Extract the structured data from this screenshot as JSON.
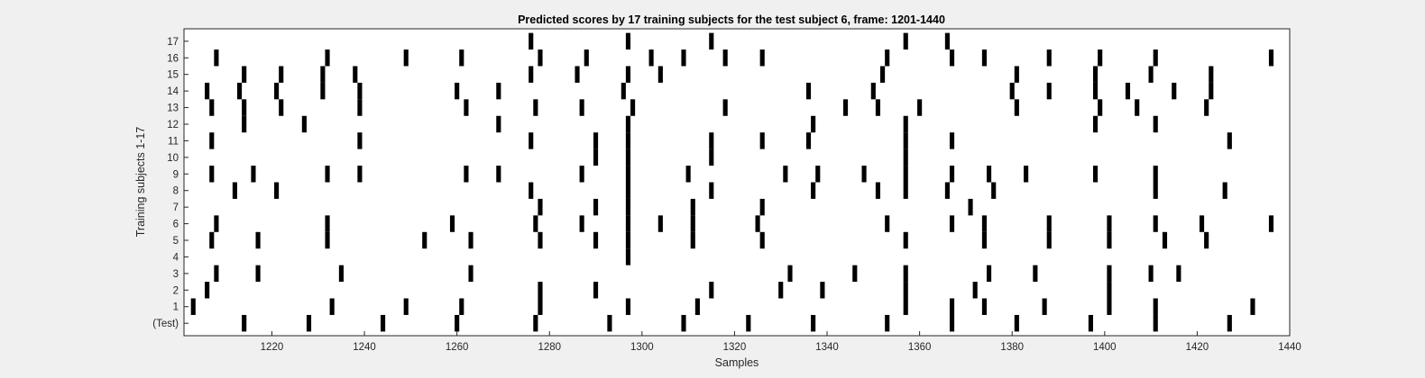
{
  "chart_data": {
    "type": "raster",
    "title": "Predicted scores by 17 training subjects for the test subject 6, frame: 1201-1440",
    "xlabel": "Samples",
    "ylabel": "Training subjects 1-17",
    "xlim": [
      1201,
      1440
    ],
    "xticks": [
      1220,
      1240,
      1260,
      1280,
      1300,
      1320,
      1340,
      1360,
      1380,
      1400,
      1420,
      1440
    ],
    "rows": [
      "(Test)",
      "1",
      "2",
      "3",
      "4",
      "5",
      "6",
      "7",
      "8",
      "9",
      "10",
      "11",
      "12",
      "13",
      "14",
      "15",
      "16",
      "17"
    ],
    "colors": {
      "background": "#f0f0f0",
      "plot": "#ffffff",
      "mark": "#000000"
    },
    "events": [
      [
        1214,
        1228,
        1244,
        1260,
        1277,
        1293,
        1309,
        1323,
        1337,
        1353,
        1367,
        1381,
        1397,
        1411,
        1427,
        1441
      ],
      [
        1203,
        1233,
        1249,
        1261,
        1278,
        1297,
        1312,
        1357,
        1367,
        1374,
        1387,
        1401,
        1411,
        1432
      ],
      [
        1206,
        1278,
        1290,
        1315,
        1330,
        1339,
        1357,
        1372,
        1401
      ],
      [
        1208,
        1217,
        1235,
        1263,
        1332,
        1346,
        1357,
        1375,
        1385,
        1401,
        1410,
        1416
      ],
      [
        1297
      ],
      [
        1207,
        1217,
        1232,
        1253,
        1263,
        1278,
        1290,
        1297,
        1311,
        1326,
        1357,
        1374,
        1388,
        1401,
        1413,
        1422
      ],
      [
        1208,
        1232,
        1259,
        1277,
        1287,
        1297,
        1304,
        1311,
        1325,
        1353,
        1367,
        1374,
        1388,
        1401,
        1411,
        1421,
        1436
      ],
      [
        1278,
        1290,
        1297,
        1311,
        1326,
        1371
      ],
      [
        1212,
        1221,
        1276,
        1297,
        1315,
        1337,
        1351,
        1357,
        1366,
        1376,
        1411,
        1426
      ],
      [
        1207,
        1216,
        1232,
        1239,
        1262,
        1269,
        1287,
        1297,
        1310,
        1331,
        1338,
        1348,
        1357,
        1367,
        1375,
        1383,
        1398,
        1411
      ],
      [
        1290,
        1297,
        1315,
        1357
      ],
      [
        1207,
        1239,
        1276,
        1290,
        1297,
        1315,
        1326,
        1336,
        1357,
        1367,
        1427
      ],
      [
        1214,
        1227,
        1269,
        1297,
        1337,
        1357,
        1398,
        1411
      ],
      [
        1207,
        1214,
        1222,
        1239,
        1262,
        1277,
        1287,
        1298,
        1318,
        1344,
        1351,
        1360,
        1381,
        1399,
        1407,
        1422
      ],
      [
        1206,
        1213,
        1221,
        1231,
        1239,
        1260,
        1269,
        1296,
        1336,
        1350,
        1380,
        1388,
        1398,
        1405,
        1415,
        1423
      ],
      [
        1214,
        1222,
        1231,
        1238,
        1276,
        1286,
        1297,
        1304,
        1352,
        1381,
        1398,
        1410,
        1423
      ],
      [
        1208,
        1232,
        1249,
        1261,
        1278,
        1288,
        1302,
        1309,
        1318,
        1326,
        1353,
        1367,
        1374,
        1388,
        1399,
        1411,
        1436
      ],
      [
        1276,
        1297,
        1315,
        1357,
        1366
      ]
    ]
  }
}
